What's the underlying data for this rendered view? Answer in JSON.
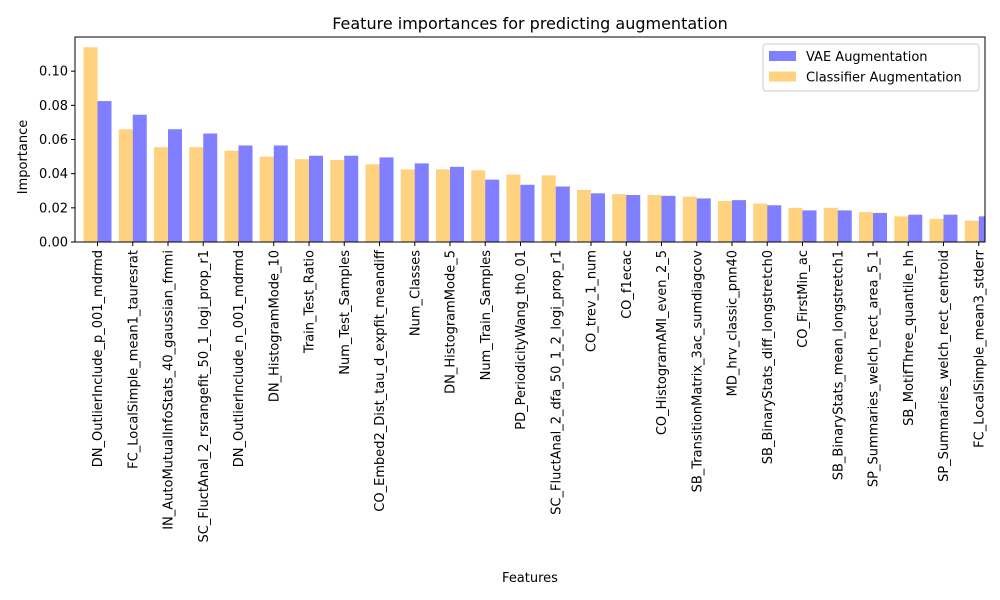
{
  "chart_data": {
    "type": "bar",
    "title": "Feature importances for predicting augmentation",
    "xlabel": "Features",
    "ylabel": "Importance",
    "ylim": [
      0,
      0.12
    ],
    "yticks": [
      "0.00",
      "0.02",
      "0.04",
      "0.06",
      "0.08",
      "0.10"
    ],
    "grid": false,
    "legend_position": "top-right",
    "categories": [
      "DN_OutlierInclude_p_001_mdrmd",
      "FC_LocalSimple_mean1_tauresrat",
      "IN_AutoMutualInfoStats_40_gaussian_fmmi",
      "SC_FluctAnal_2_rsrangefit_50_1_logi_prop_r1",
      "DN_OutlierInclude_n_001_mdrmd",
      "DN_HistogramMode_10",
      "Train_Test_Ratio",
      "Num_Test_Samples",
      "CO_Embed2_Dist_tau_d_expfit_meandiff",
      "Num_Classes",
      "DN_HistogramMode_5",
      "Num_Train_Samples",
      "PD_PeriodicityWang_th0_01",
      "SC_FluctAnal_2_dfa_50_1_2_logi_prop_r1",
      "CO_trev_1_num",
      "CO_f1ecac",
      "CO_HistogramAMI_even_2_5",
      "SB_TransitionMatrix_3ac_sumdiagcov",
      "MD_hrv_classic_pnn40",
      "SB_BinaryStats_diff_longstretch0",
      "CO_FirstMin_ac",
      "SB_BinaryStats_mean_longstretch1",
      "SP_Summaries_welch_rect_area_5_1",
      "SB_MotifThree_quantile_hh",
      "SP_Summaries_welch_rect_centroid",
      "FC_LocalSimple_mean3_stderr"
    ],
    "series": [
      {
        "name": "Classifier Augmentation",
        "color": "#ffa500",
        "opacity": 0.5,
        "values": [
          0.114,
          0.066,
          0.0555,
          0.0555,
          0.0535,
          0.05,
          0.0485,
          0.048,
          0.0455,
          0.0425,
          0.0425,
          0.042,
          0.0395,
          0.039,
          0.0305,
          0.028,
          0.0275,
          0.0265,
          0.024,
          0.0225,
          0.02,
          0.02,
          0.0175,
          0.015,
          0.0135,
          0.0125
        ]
      },
      {
        "name": "VAE Augmentation",
        "color": "#0000ff",
        "opacity": 0.5,
        "values": [
          0.0825,
          0.0745,
          0.066,
          0.0635,
          0.0565,
          0.0565,
          0.0505,
          0.0505,
          0.0495,
          0.046,
          0.044,
          0.0365,
          0.0335,
          0.0325,
          0.0285,
          0.0275,
          0.027,
          0.0255,
          0.0245,
          0.0215,
          0.0185,
          0.0185,
          0.017,
          0.016,
          0.016,
          0.015
        ]
      }
    ],
    "legend_order": [
      "VAE Augmentation",
      "Classifier Augmentation"
    ]
  }
}
